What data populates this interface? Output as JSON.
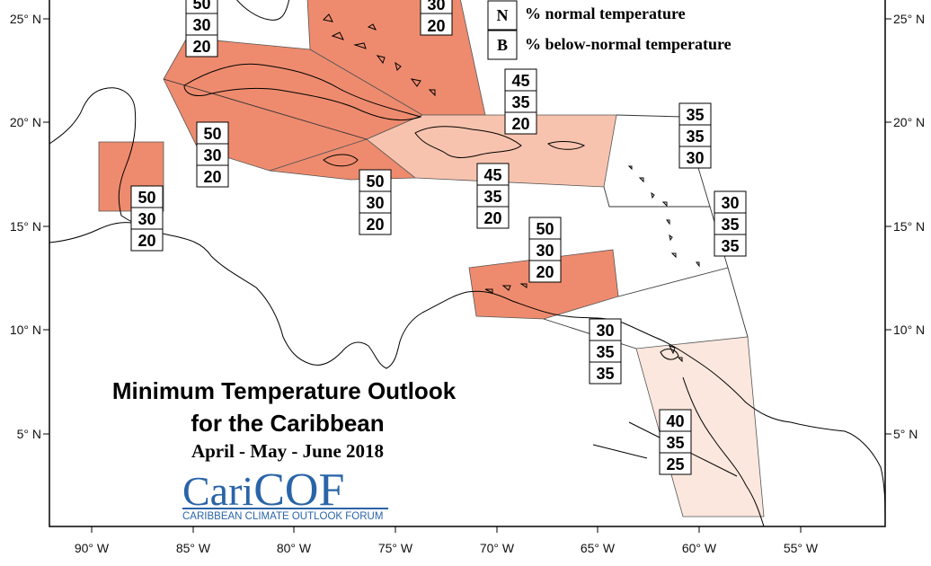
{
  "title_line1": "Minimum Temperature Outlook",
  "title_line2": "for the Caribbean",
  "period": "April - May - June 2018",
  "logo": {
    "name_part1": "Cari",
    "name_part2": "COF",
    "full_name": "CARIBBEAN CLIMATE OUTLOOK FORUM"
  },
  "legend": [
    {
      "letter": "N",
      "text": "% normal temperature"
    },
    {
      "letter": "B",
      "text": "% below-normal temperature"
    }
  ],
  "x_ticks": [
    "90° W",
    "85° W",
    "80° W",
    "75° W",
    "70° W",
    "65° W",
    "60° W",
    "55° W"
  ],
  "y_ticks": [
    "25° N",
    "20° N",
    "15° N",
    "10° N",
    "5° N"
  ],
  "colors": {
    "high": "#ee8b6e",
    "medium": "#f8c3ae",
    "low": "#fbe7dd",
    "none": "#ffffff",
    "logo": "#2a64a8"
  },
  "outlook_boxes": [
    {
      "id": "florida-keys",
      "values": [
        "50",
        "30",
        "20"
      ]
    },
    {
      "id": "bahamas",
      "values": [
        "",
        "30",
        "20"
      ]
    },
    {
      "id": "cuba",
      "values": [
        "50",
        "30",
        "20"
      ]
    },
    {
      "id": "belize",
      "values": [
        "50",
        "30",
        "20"
      ]
    },
    {
      "id": "jamaica",
      "values": [
        "50",
        "30",
        "20"
      ]
    },
    {
      "id": "hispaniola-north",
      "values": [
        "45",
        "35",
        "20"
      ]
    },
    {
      "id": "hispaniola-south",
      "values": [
        "45",
        "35",
        "20"
      ]
    },
    {
      "id": "northern-leewards",
      "values": [
        "35",
        "35",
        "30"
      ]
    },
    {
      "id": "southern-windwards",
      "values": [
        "30",
        "35",
        "35"
      ]
    },
    {
      "id": "abc-islands",
      "values": [
        "50",
        "30",
        "20"
      ]
    },
    {
      "id": "trinidad",
      "values": [
        "30",
        "35",
        "35"
      ]
    },
    {
      "id": "guianas",
      "values": [
        "40",
        "35",
        "25"
      ]
    }
  ]
}
